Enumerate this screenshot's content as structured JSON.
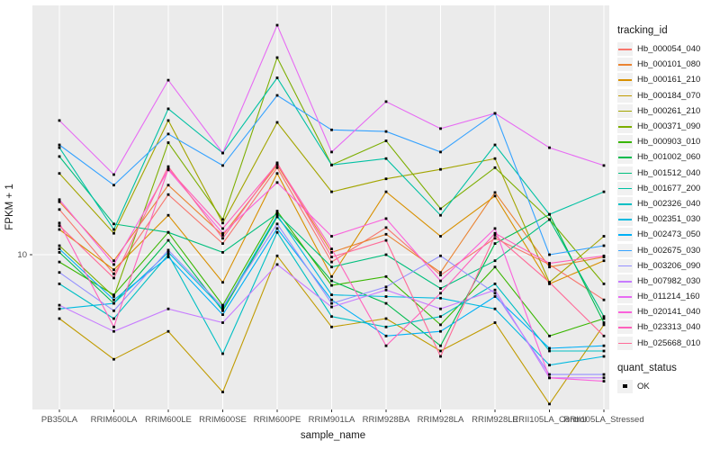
{
  "chart_data": {
    "type": "line",
    "xlabel": "sample_name",
    "ylabel": "FPKM + 1",
    "y_scale": "log10",
    "y_tick_labels": [
      "10"
    ],
    "y_tick_values": [
      10
    ],
    "grid": "major-white-on-gray",
    "legend_position": "right",
    "point_shape": "filled-square",
    "categories": [
      "PB350LA",
      "RRIM600LA",
      "RRIM600LE",
      "RRIM600SE",
      "RRIM600PE",
      "RRIM901LA",
      "RRIM928BA",
      "RRIM928LA",
      "RRIM928LE",
      "RRII105LA_Control",
      "RRII105LA_Stressed"
    ],
    "series": [
      {
        "name": "Hb_000054_040",
        "color": "#F8766D",
        "values": [
          14.7,
          8.5,
          16.7,
          11.0,
          21.0,
          9.4,
          12.6,
          8.4,
          11.5,
          9.2,
          6.8
        ]
      },
      {
        "name": "Hb_000101_080",
        "color": "#EA8331",
        "values": [
          15.7,
          9.5,
          18.1,
          11.8,
          21.5,
          10.2,
          11.9,
          8.6,
          17.0,
          9.0,
          9.8
        ]
      },
      {
        "name": "Hb_000161_210",
        "color": "#D89000",
        "values": [
          12.4,
          8.8,
          14.0,
          7.9,
          20.0,
          8.3,
          17.1,
          11.7,
          16.5,
          7.8,
          9.5
        ]
      },
      {
        "name": "Hb_000184_070",
        "color": "#C09B00",
        "values": [
          5.8,
          4.1,
          5.2,
          3.1,
          9.9,
          5.4,
          5.8,
          4.4,
          5.6,
          2.8,
          5.5
        ]
      },
      {
        "name": "Hb_000261_210",
        "color": "#A3A500",
        "values": [
          20.0,
          12.0,
          31.4,
          13.1,
          30.9,
          17.1,
          19.1,
          20.7,
          22.7,
          7.9,
          11.7
        ]
      },
      {
        "name": "Hb_000371_090",
        "color": "#7CAE00",
        "values": [
          10.8,
          7.0,
          26.0,
          13.5,
          53.7,
          21.5,
          26.4,
          14.8,
          21.0,
          13.5,
          7.8
        ]
      },
      {
        "name": "Hb_000903_010",
        "color": "#39B600",
        "values": [
          9.4,
          7.1,
          12.1,
          6.5,
          14.5,
          7.7,
          8.3,
          5.5,
          9.0,
          5.0,
          5.8
        ]
      },
      {
        "name": "Hb_001002_060",
        "color": "#00BB4E",
        "values": [
          10.2,
          6.6,
          11.3,
          6.2,
          13.8,
          8.0,
          6.6,
          4.6,
          11.0,
          14.1,
          5.6
        ]
      },
      {
        "name": "Hb_001512_040",
        "color": "#00BF7D",
        "values": [
          23.1,
          13.0,
          12.1,
          10.2,
          14.2,
          9.0,
          10.0,
          7.5,
          9.5,
          13.5,
          5.9
        ]
      },
      {
        "name": "Hb_001677_200",
        "color": "#00C1A3",
        "values": [
          24.9,
          12.4,
          34.7,
          23.8,
          45.2,
          21.5,
          22.7,
          14.0,
          25.5,
          14.1,
          17.1
        ]
      },
      {
        "name": "Hb_002326_040",
        "color": "#00BFC4",
        "values": [
          7.8,
          5.8,
          10.0,
          4.3,
          12.1,
          5.9,
          5.4,
          5.9,
          7.8,
          4.4,
          4.4
        ]
      },
      {
        "name": "Hb_002351_030",
        "color": "#00BAE0",
        "values": [
          6.3,
          6.6,
          10.2,
          6.3,
          14.0,
          7.1,
          7.0,
          6.9,
          6.3,
          3.9,
          4.2
        ]
      },
      {
        "name": "Hb_002473_050",
        "color": "#00B0F6",
        "values": [
          10.5,
          6.8,
          9.8,
          6.0,
          12.5,
          6.8,
          5.0,
          5.2,
          7.0,
          4.5,
          4.6
        ]
      },
      {
        "name": "Hb_002675_030",
        "color": "#35A2FF",
        "values": [
          25.5,
          18.1,
          28.0,
          21.4,
          38.9,
          29.0,
          28.6,
          24.0,
          33.4,
          10.0,
          10.8
        ]
      },
      {
        "name": "Hb_003206_090",
        "color": "#9590FF",
        "values": [
          8.6,
          6.2,
          10.4,
          6.4,
          13.0,
          6.6,
          7.6,
          9.9,
          7.2,
          3.6,
          3.6
        ]
      },
      {
        "name": "Hb_007982_030",
        "color": "#C77CFF",
        "values": [
          6.5,
          5.2,
          6.3,
          5.6,
          9.2,
          6.4,
          7.4,
          6.3,
          7.4,
          3.5,
          3.5
        ]
      },
      {
        "name": "Hb_011214_160",
        "color": "#E76BF3",
        "values": [
          31.4,
          19.8,
          44.3,
          23.8,
          70.8,
          24.0,
          36.9,
          29.3,
          33.4,
          24.9,
          21.4
        ]
      },
      {
        "name": "Hb_020141_040",
        "color": "#FA62DB",
        "values": [
          16.0,
          9.2,
          20.6,
          12.0,
          18.5,
          11.7,
          13.6,
          8.0,
          12.5,
          3.5,
          3.4
        ]
      },
      {
        "name": "Hb_023313_040",
        "color": "#FF62BC",
        "values": [
          13.1,
          5.4,
          20.8,
          12.5,
          21.7,
          10.5,
          4.6,
          7.2,
          12.0,
          9.3,
          9.9
        ]
      },
      {
        "name": "Hb_025668_010",
        "color": "#FF6A98",
        "values": [
          12.8,
          8.2,
          21.2,
          11.5,
          21.9,
          9.8,
          11.3,
          4.2,
          11.8,
          7.9,
          5.0
        ]
      }
    ]
  },
  "legend": {
    "tracking_title": "tracking_id",
    "quant_title": "quant_status",
    "quant_ok_label": "OK"
  },
  "colors": {
    "panel_bg": "#EBEBEB",
    "grid_line": "#FFFFFF",
    "point": "#000000",
    "tick_text": "#4D4D4D",
    "axis_title_text": "#1A1A1A",
    "legend_key_bg": "#F1F1F1"
  }
}
